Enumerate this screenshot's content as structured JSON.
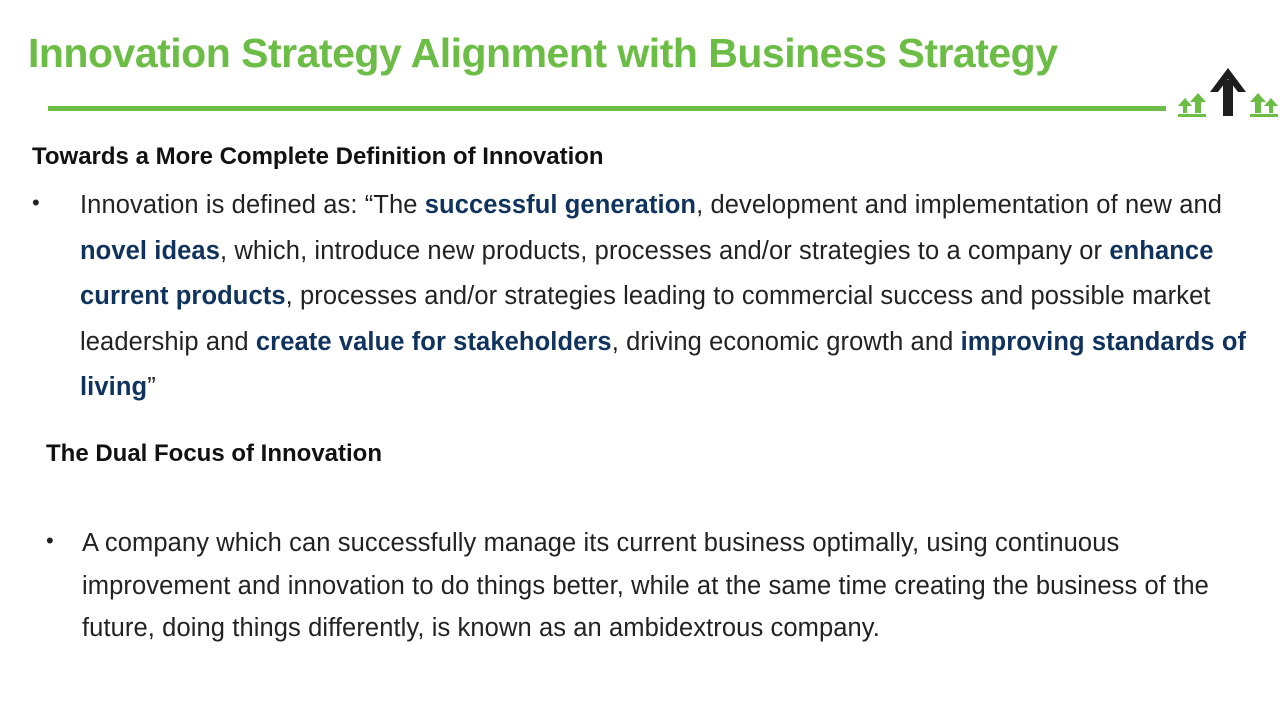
{
  "slide": {
    "title": "Innovation Strategy Alignment with Business Strategy",
    "colors": {
      "accent_green": "#6cbd45",
      "highlight_navy": "#10335e",
      "logo_dark": "#1e1e1e"
    },
    "logo": {
      "icon": "arrows-up-logo-icon"
    }
  },
  "section1": {
    "heading": "Towards a More Complete Definition of Innovation",
    "bullet": "•",
    "segments": [
      "Innovation is defined as: “The ",
      "successful generation",
      ", development and implementation of new and ",
      "novel ideas",
      ", which, introduce new products, processes and/or strategies to a company or ",
      "enhance current products",
      ", processes and/or strategies leading to commercial success and possible market leadership and ",
      "create value for stakeholders",
      ", driving economic growth and ",
      "improving standards of living",
      "”"
    ]
  },
  "section2": {
    "heading": "The Dual Focus of Innovation",
    "bullet": "•",
    "text": "A company which can successfully manage its current business optimally, using continuous improvement and innovation to do things better, while at the same time creating the business of the future, doing things differently, is known as an ambidextrous company."
  }
}
